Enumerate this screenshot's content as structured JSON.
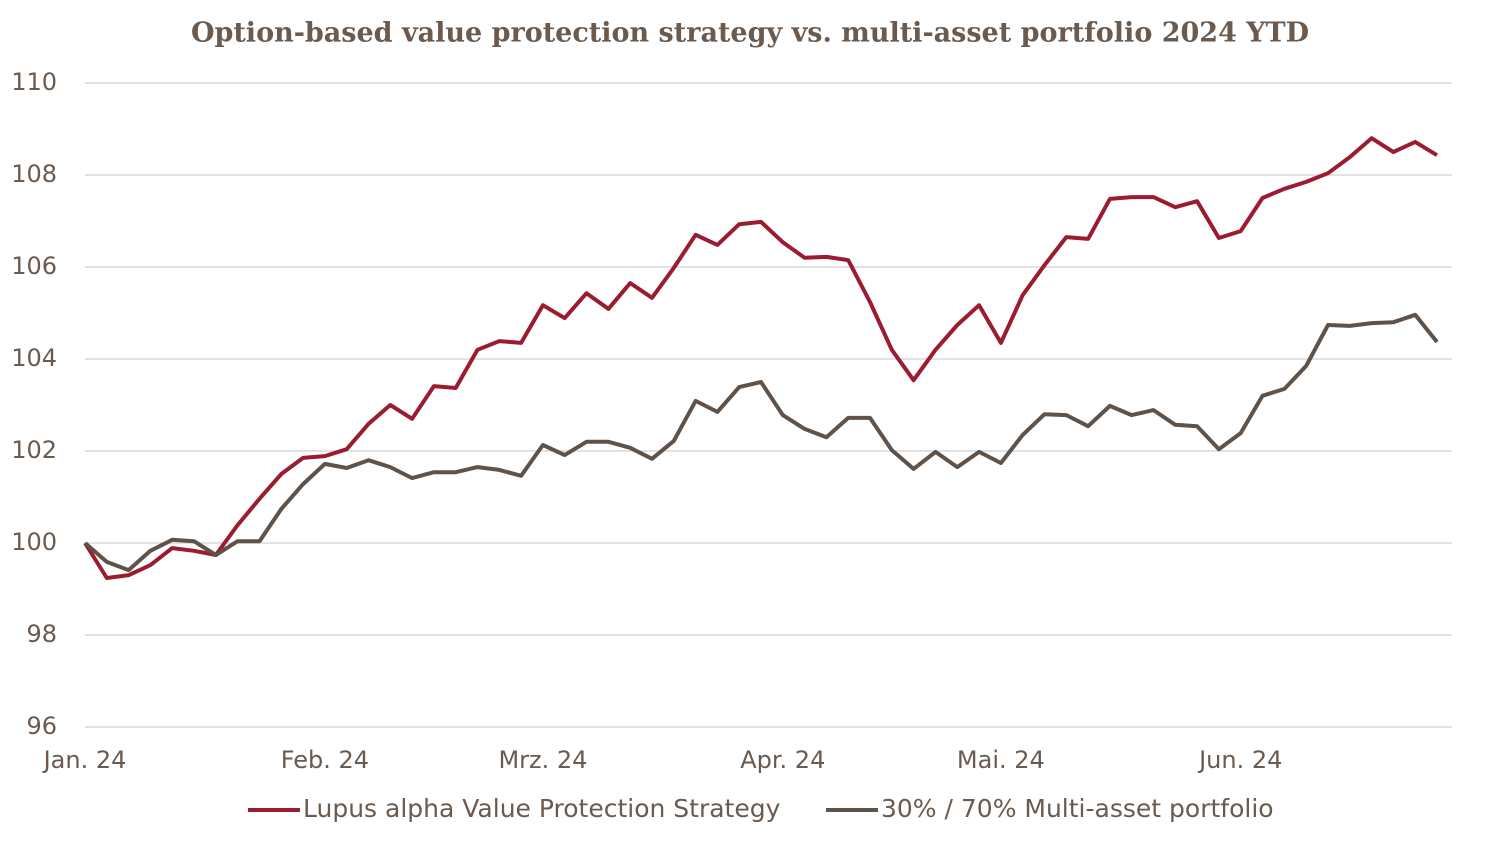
{
  "chart_data": {
    "type": "line",
    "title": "Option-based value protection strategy vs. multi-asset portfolio 2024 YTD",
    "categories": [
      "Jan. 24",
      null,
      null,
      null,
      null,
      null,
      null,
      null,
      null,
      null,
      null,
      "Feb. 24",
      null,
      null,
      null,
      null,
      null,
      null,
      null,
      null,
      null,
      "Mrz. 24",
      null,
      null,
      null,
      null,
      null,
      null,
      null,
      null,
      null,
      null,
      "Apr. 24",
      null,
      null,
      null,
      null,
      null,
      null,
      null,
      null,
      null,
      "Mai. 24",
      null,
      null,
      null,
      null,
      null,
      null,
      null,
      null,
      null,
      null,
      "Jun. 24",
      null,
      null,
      null,
      null,
      null,
      null,
      null,
      null,
      null
    ],
    "series": [
      {
        "name": "Lupus alpha Value Protection Strategy",
        "color": "#9b1c31",
        "values": [
          100.0,
          99.24,
          99.3,
          99.52,
          99.89,
          99.83,
          99.74,
          100.39,
          100.96,
          101.5,
          101.85,
          101.89,
          102.04,
          102.59,
          103.0,
          102.7,
          103.41,
          103.37,
          104.2,
          104.39,
          104.35,
          105.17,
          104.89,
          105.43,
          105.09,
          105.65,
          105.33,
          105.98,
          106.7,
          106.48,
          106.93,
          106.98,
          106.54,
          106.2,
          106.22,
          106.15,
          105.24,
          104.2,
          103.54,
          104.2,
          104.74,
          105.17,
          104.35,
          105.39,
          106.04,
          106.65,
          106.61,
          107.48,
          107.52,
          107.52,
          107.3,
          107.43,
          106.63,
          106.78,
          107.5,
          107.7,
          107.85,
          108.04,
          108.39,
          108.8,
          108.5,
          108.72,
          108.43
        ]
      },
      {
        "name": "30% / 70% Multi-asset portfolio",
        "color": "#5e5249",
        "values": [
          100.0,
          99.59,
          99.41,
          99.83,
          100.07,
          100.04,
          99.74,
          100.04,
          100.04,
          100.74,
          101.28,
          101.72,
          101.63,
          101.8,
          101.65,
          101.41,
          101.54,
          101.54,
          101.65,
          101.59,
          101.46,
          102.13,
          101.91,
          102.2,
          102.2,
          102.07,
          101.83,
          102.22,
          103.09,
          102.85,
          103.39,
          103.5,
          102.78,
          102.48,
          102.3,
          102.72,
          102.72,
          102.02,
          101.61,
          101.98,
          101.65,
          101.98,
          101.74,
          102.35,
          102.8,
          102.78,
          102.54,
          102.98,
          102.78,
          102.89,
          102.57,
          102.54,
          102.04,
          102.39,
          103.2,
          103.35,
          103.85,
          104.74,
          104.72,
          104.78,
          104.8,
          104.96,
          104.37
        ]
      }
    ],
    "ylim": [
      96,
      110
    ],
    "yticks": [
      96,
      98,
      100,
      102,
      104,
      106,
      108,
      110
    ],
    "grid": true,
    "legend": "bottom"
  }
}
